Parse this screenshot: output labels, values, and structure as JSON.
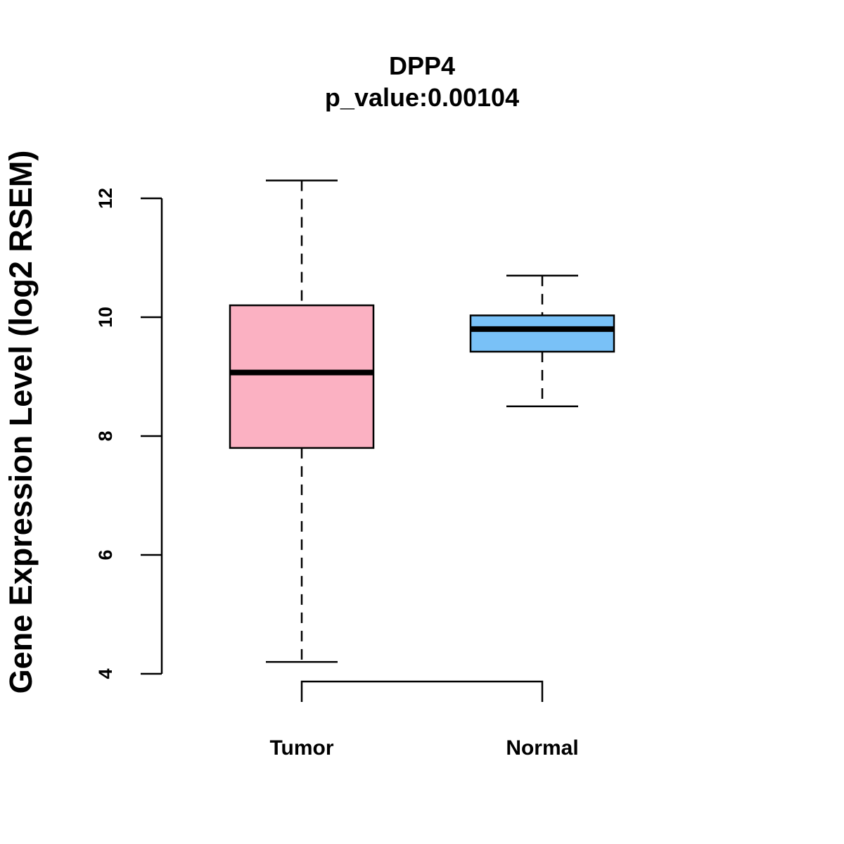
{
  "chart_data": {
    "type": "box",
    "title": "DPP4",
    "subtitle": "p_value:0.00104",
    "xlabel": "",
    "ylabel": "Gene Expression Level (log2 RSEM)",
    "ylim": [
      4,
      12
    ],
    "yticks": [
      "4",
      "6",
      "8",
      "10",
      "12"
    ],
    "categories": [
      "Tumor",
      "Normal"
    ],
    "colors": [
      "#FBB1C2",
      "#79C1F7"
    ],
    "boxes": [
      {
        "name": "Tumor",
        "min": 4.2,
        "q1": 7.8,
        "median": 9.07,
        "q3": 10.2,
        "max": 12.3
      },
      {
        "name": "Normal",
        "min": 8.5,
        "q1": 9.42,
        "median": 9.8,
        "q3": 10.03,
        "max": 10.7
      }
    ],
    "comparison_bracket": [
      "Tumor",
      "Normal"
    ],
    "grid": false,
    "legend": "none"
  }
}
